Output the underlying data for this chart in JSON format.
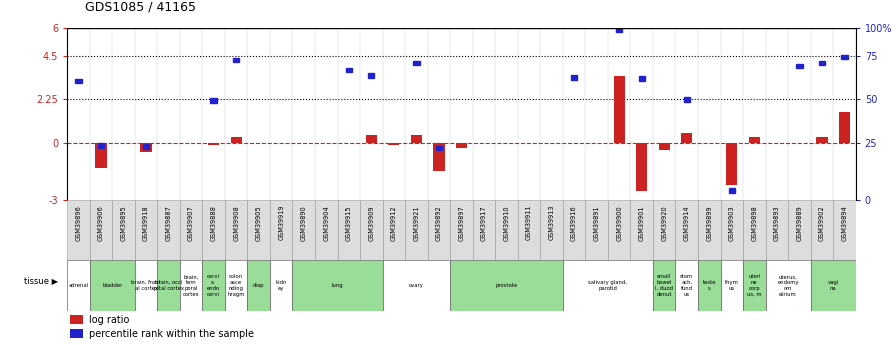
{
  "title": "GDS1085 / 41165",
  "samples": [
    "GSM39896",
    "GSM39906",
    "GSM39895",
    "GSM39918",
    "GSM39887",
    "GSM39907",
    "GSM39888",
    "GSM39908",
    "GSM39905",
    "GSM39919",
    "GSM39890",
    "GSM39904",
    "GSM39915",
    "GSM39909",
    "GSM39912",
    "GSM39921",
    "GSM39892",
    "GSM39897",
    "GSM39917",
    "GSM39910",
    "GSM39911",
    "GSM39913",
    "GSM39916",
    "GSM39891",
    "GSM39900",
    "GSM39901",
    "GSM39920",
    "GSM39914",
    "GSM39899",
    "GSM39903",
    "GSM39898",
    "GSM39893",
    "GSM39889",
    "GSM39902",
    "GSM39894"
  ],
  "log_ratio": [
    0.0,
    -1.3,
    0.0,
    -0.5,
    0.0,
    0.0,
    -0.1,
    0.3,
    0.0,
    0.0,
    0.0,
    0.0,
    0.0,
    0.4,
    -0.1,
    0.4,
    -1.5,
    -0.3,
    0.0,
    0.0,
    0.0,
    0.0,
    0.0,
    0.0,
    3.5,
    -2.5,
    -0.4,
    0.5,
    0.0,
    -2.2,
    0.3,
    0.0,
    0.0,
    0.3,
    1.6
  ],
  "pct_rank_scaled": [
    3.2,
    -0.15,
    0.0,
    -0.2,
    0.0,
    0.0,
    2.2,
    4.3,
    0.0,
    0.0,
    0.0,
    0.0,
    3.8,
    3.5,
    0.0,
    4.15,
    -0.3,
    0.0,
    0.0,
    0.0,
    0.0,
    0.0,
    3.4,
    0.0,
    5.9,
    3.35,
    0.0,
    2.25,
    0.0,
    -2.5,
    0.0,
    0.0,
    4.0,
    4.15,
    4.45
  ],
  "tissues": [
    {
      "label": "adrenal",
      "start": 0,
      "end": 1,
      "green": false
    },
    {
      "label": "bladder",
      "start": 1,
      "end": 3,
      "green": true
    },
    {
      "label": "brain, front\nal cortex",
      "start": 3,
      "end": 4,
      "green": false
    },
    {
      "label": "brain, occi\npital cortex",
      "start": 4,
      "end": 5,
      "green": true
    },
    {
      "label": "brain,\ntem\nporal\ncortex",
      "start": 5,
      "end": 6,
      "green": false
    },
    {
      "label": "cervi\nx,\nendo\ncervi",
      "start": 6,
      "end": 7,
      "green": true
    },
    {
      "label": "colon\nasce\nnding\nhragm",
      "start": 7,
      "end": 8,
      "green": false
    },
    {
      "label": "diap",
      "start": 8,
      "end": 9,
      "green": true
    },
    {
      "label": "kidn\ney",
      "start": 9,
      "end": 10,
      "green": false
    },
    {
      "label": "lung",
      "start": 10,
      "end": 14,
      "green": true
    },
    {
      "label": "ovary",
      "start": 14,
      "end": 17,
      "green": false
    },
    {
      "label": "prostate",
      "start": 17,
      "end": 22,
      "green": true
    },
    {
      "label": "salivary gland,\nparotid",
      "start": 22,
      "end": 26,
      "green": false
    },
    {
      "label": "small\nbowel\nI, duod\ndenut",
      "start": 26,
      "end": 27,
      "green": true
    },
    {
      "label": "stom\nach,\nfund\nus",
      "start": 27,
      "end": 28,
      "green": false
    },
    {
      "label": "teste\ns",
      "start": 28,
      "end": 29,
      "green": true
    },
    {
      "label": "thym\nus",
      "start": 29,
      "end": 30,
      "green": false
    },
    {
      "label": "uteri\nne\ncorp\nus, m",
      "start": 30,
      "end": 31,
      "green": true
    },
    {
      "label": "uterus,\nendomy\nom\netrium",
      "start": 31,
      "end": 33,
      "green": false
    },
    {
      "label": "vagi\nna",
      "start": 33,
      "end": 35,
      "green": true
    }
  ],
  "ylim_left": [
    -3,
    6
  ],
  "dotted_lines": [
    2.25,
    4.5
  ],
  "bar_color": "#cc2222",
  "sq_color": "#2222cc",
  "bg_color": "#ffffff",
  "tissue_green": "#99dd99",
  "tissue_white": "#ffffff",
  "sample_box_gray": "#dddddd",
  "right_ticks_left": [
    -3,
    0,
    2.25,
    4.5,
    6
  ],
  "right_ticks_labels": [
    "0",
    "25",
    "50",
    "75",
    "100%"
  ],
  "left_axis_ticks": [
    -3,
    0,
    2.25,
    4.5,
    6
  ],
  "left_axis_labels": [
    "-3",
    "0",
    "2.25",
    "4.5",
    "6"
  ]
}
